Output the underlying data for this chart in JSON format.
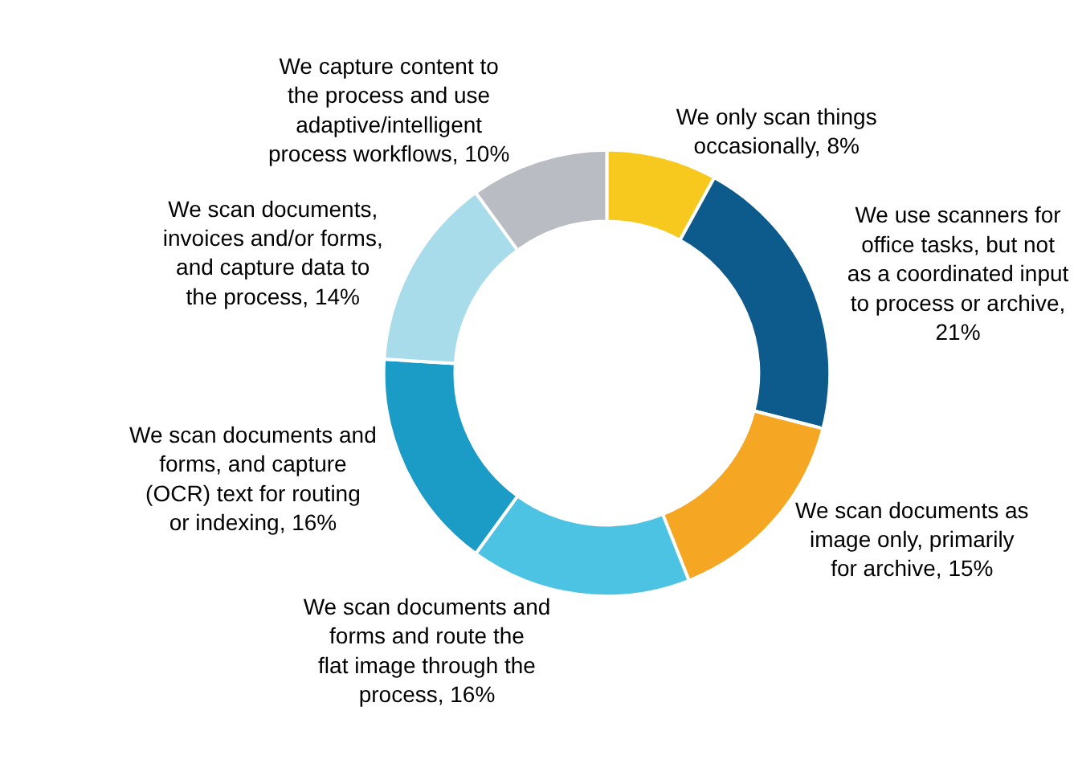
{
  "chart_data": {
    "type": "donut",
    "categories": [
      "We only scan things occasionally, 8%",
      "We use scanners for office tasks, but not as a coordinated input to process or archive, 21%",
      "We scan documents as image only, primarily for archive, 15%",
      "We scan documents and forms and route the flat image through the process, 16%",
      "We scan documents and forms, and capture (OCR) text for routing or indexing, 16%",
      "We scan documents, invoices and/or forms, and capture data to the process, 14%",
      "We capture content to the process and use adaptive/intelligent process workflows, 10%"
    ],
    "values": [
      8,
      21,
      15,
      16,
      16,
      14,
      10
    ],
    "colors": [
      "#f7c81e",
      "#0d5b8c",
      "#f5a623",
      "#4cc3e2",
      "#1b9cc6",
      "#a9dcea",
      "#b9bcc3"
    ],
    "legend": false
  }
}
